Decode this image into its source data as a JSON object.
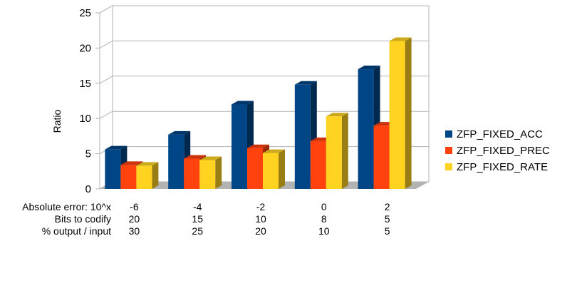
{
  "chart_data": {
    "type": "bar",
    "ylabel": "Ratio",
    "ylim": [
      0,
      25
    ],
    "yticks": [
      "0",
      "5",
      "10",
      "15",
      "20",
      "25"
    ],
    "grid": true,
    "legend_position": "right",
    "categories": [
      "-6",
      "-4",
      "-2",
      "0",
      "2"
    ],
    "table_rows": [
      {
        "label": "Absolute error: 10^x",
        "values": [
          "-6",
          "-4",
          "-2",
          "0",
          "2"
        ]
      },
      {
        "label": "Bits to codify",
        "values": [
          "20",
          "15",
          "10",
          "8",
          "5"
        ]
      },
      {
        "label": "% output / input",
        "values": [
          "30",
          "25",
          "20",
          "10",
          "5"
        ]
      }
    ],
    "series": [
      {
        "name": "ZFP_FIXED_ACC",
        "color": "#004586",
        "values": [
          5.6,
          7.7,
          12.0,
          14.8,
          17.0
        ]
      },
      {
        "name": "ZFP_FIXED_PREC",
        "color": "#ff420e",
        "values": [
          3.4,
          4.3,
          5.8,
          6.8,
          9.0
        ]
      },
      {
        "name": "ZFP_FIXED_RATE",
        "color": "#ffd320",
        "values": [
          3.3,
          4.1,
          5.1,
          10.3,
          21.0
        ]
      }
    ]
  }
}
